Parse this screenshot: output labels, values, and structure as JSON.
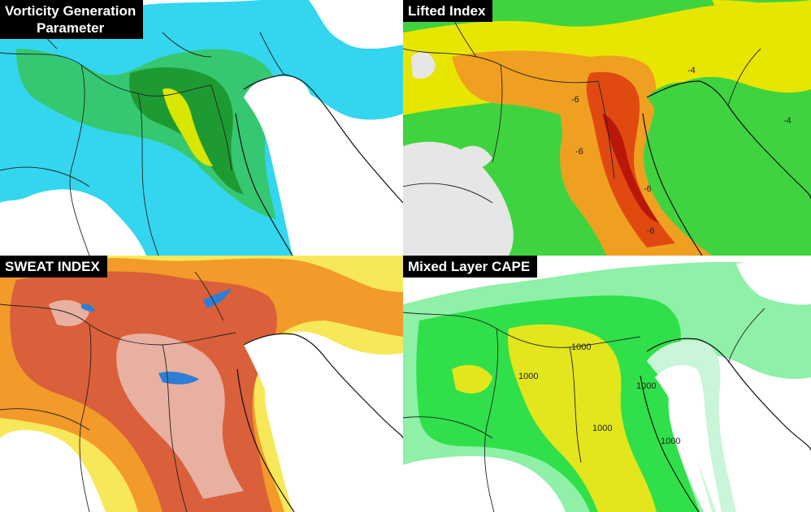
{
  "panels": {
    "vgp": {
      "title_line1": "Vorticity Generation",
      "title_line2": "Parameter"
    },
    "li": {
      "title": "Lifted Index",
      "contour_labels": [
        "-6",
        "-6",
        "-4",
        "-4",
        "-6",
        "-6"
      ]
    },
    "sweat": {
      "title": "SWEAT INDEX"
    },
    "cape": {
      "title": "Mixed Layer CAPE",
      "contour_labels": [
        "1000",
        "1000",
        "1000",
        "1000",
        "1000"
      ]
    }
  },
  "colors": {
    "vgp_low": "#33d6ee",
    "vgp_mid": "#35c871",
    "vgp_high": "#1e9a32",
    "vgp_peak": "#d8e600",
    "li_base": "#3fd43f",
    "li_yellow": "#e8e600",
    "li_orange": "#f0a020",
    "li_red": "#e04a10",
    "li_dark": "#b81808",
    "sweat_yellow": "#f7e85a",
    "sweat_orange": "#f29a2a",
    "sweat_red": "#d9603a",
    "sweat_pink": "#e8b0a0",
    "sweat_blue": "#2c7fd4",
    "cape_green": "#2fe04a",
    "cape_light": "#8ff0a8",
    "cape_yellow": "#e3e61c",
    "cape_mint": "#c9f5d8"
  }
}
